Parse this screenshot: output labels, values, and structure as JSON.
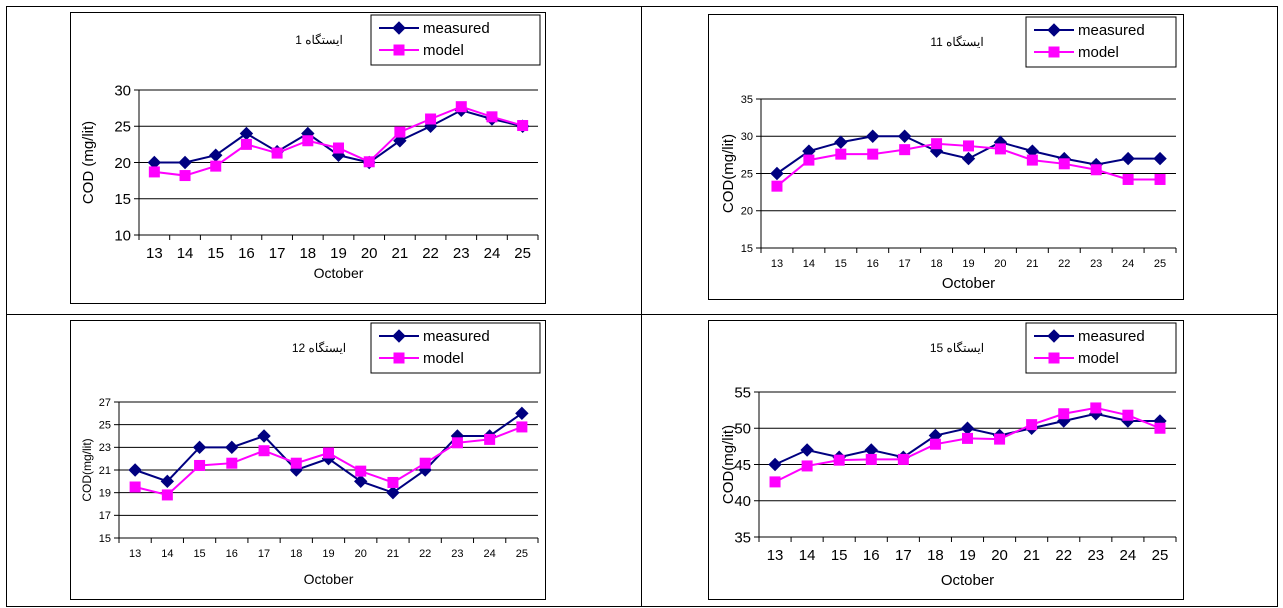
{
  "chart_data": [
    {
      "type": "line",
      "title": "ایستگاه 1",
      "xlabel": "October",
      "ylabel": "COD (mg/lit)",
      "categories": [
        "13",
        "14",
        "15",
        "16",
        "17",
        "18",
        "19",
        "20",
        "21",
        "22",
        "23",
        "24",
        "25"
      ],
      "ylim": [
        10,
        30
      ],
      "yticks": [
        10,
        15,
        20,
        25,
        30
      ],
      "grid": true,
      "legend": "top-right",
      "series": [
        {
          "name": "measured",
          "color": "#000080",
          "marker": "diamond",
          "values": [
            20,
            20,
            21,
            24,
            21.5,
            24,
            21,
            20,
            23,
            25,
            27.2,
            26,
            25
          ]
        },
        {
          "name": "model",
          "color": "#ff00ff",
          "marker": "square",
          "values": [
            18.7,
            18.2,
            19.5,
            22.5,
            21.3,
            23,
            22,
            20.1,
            24.2,
            26,
            27.7,
            26.3,
            25.1
          ]
        }
      ]
    },
    {
      "type": "line",
      "title": "ایستگاه 11",
      "xlabel": "October",
      "ylabel": "COD(mg/lit)",
      "categories": [
        "13",
        "14",
        "15",
        "16",
        "17",
        "18",
        "19",
        "20",
        "21",
        "22",
        "23",
        "24",
        "25"
      ],
      "ylim": [
        15,
        35
      ],
      "yticks": [
        15,
        20,
        25,
        30,
        35
      ],
      "grid": true,
      "legend": "top-right",
      "series": [
        {
          "name": "measured",
          "color": "#000080",
          "marker": "diamond",
          "values": [
            25,
            28,
            29.2,
            30,
            30,
            28,
            27,
            29.2,
            28,
            27,
            26.2,
            27,
            27
          ]
        },
        {
          "name": "model",
          "color": "#ff00ff",
          "marker": "square",
          "values": [
            23.3,
            26.8,
            27.6,
            27.6,
            28.2,
            29,
            28.7,
            28.3,
            26.8,
            26.3,
            25.5,
            24.2,
            24.2
          ]
        }
      ]
    },
    {
      "type": "line",
      "title": "ایستگاه 12",
      "xlabel": "October",
      "ylabel": "COD(mg/lit)",
      "categories": [
        "13",
        "14",
        "15",
        "16",
        "17",
        "18",
        "19",
        "20",
        "21",
        "22",
        "23",
        "24",
        "25"
      ],
      "ylim": [
        15,
        27
      ],
      "yticks": [
        15,
        17,
        19,
        21,
        23,
        25,
        27
      ],
      "grid": true,
      "legend": "top-right",
      "series": [
        {
          "name": "measured",
          "color": "#000080",
          "marker": "diamond",
          "values": [
            21,
            20,
            23,
            23,
            24,
            21,
            22,
            20,
            19,
            21,
            24,
            24,
            26
          ]
        },
        {
          "name": "model",
          "color": "#ff00ff",
          "marker": "square",
          "values": [
            19.5,
            18.8,
            21.4,
            21.6,
            22.7,
            21.6,
            22.5,
            20.9,
            19.9,
            21.6,
            23.4,
            23.7,
            24.8
          ]
        }
      ]
    },
    {
      "type": "line",
      "title": "ایستگاه 15",
      "xlabel": "October",
      "ylabel": "COD(mg/lit)",
      "categories": [
        "13",
        "14",
        "15",
        "16",
        "17",
        "18",
        "19",
        "20",
        "21",
        "22",
        "23",
        "24",
        "25"
      ],
      "ylim": [
        35,
        55
      ],
      "yticks": [
        35,
        40,
        45,
        50,
        55
      ],
      "grid": true,
      "legend": "top-right",
      "series": [
        {
          "name": "measured",
          "color": "#000080",
          "marker": "diamond",
          "values": [
            45,
            47,
            46,
            47,
            46,
            49,
            50,
            49,
            50,
            51,
            52,
            51,
            51
          ]
        },
        {
          "name": "model",
          "color": "#ff00ff",
          "marker": "square",
          "values": [
            42.6,
            44.8,
            45.6,
            45.7,
            45.7,
            47.8,
            48.6,
            48.5,
            50.5,
            52,
            52.8,
            51.8,
            50
          ]
        }
      ]
    }
  ]
}
